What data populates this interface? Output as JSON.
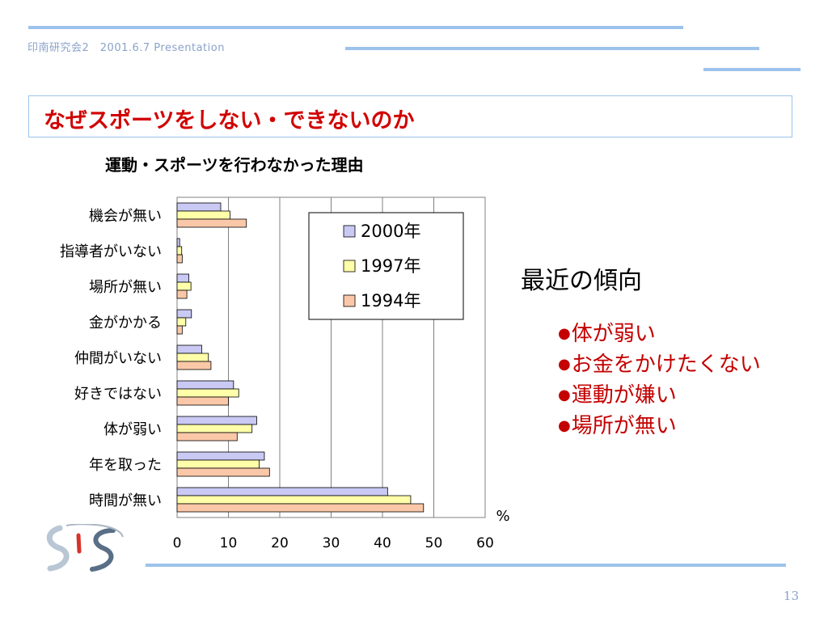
{
  "header": {
    "text": "印南研究会2　2001.6.7 Presentation"
  },
  "slide": {
    "title": "なぜスポーツをしない・できないのか",
    "page_number": "13",
    "logo_text": "SIS"
  },
  "side": {
    "heading": "最近の傾向",
    "bullet_glyph": "●",
    "items": [
      "体が弱い",
      "お金をかけたくない",
      "運動が嫌い",
      "場所が無い"
    ]
  },
  "colors": {
    "accent_rule": "#9cc3ec",
    "title_red": "#d10000",
    "series_2000": "#c9c9f4",
    "series_1997": "#ffffaa",
    "series_1994": "#fac8a8"
  },
  "chart_data": {
    "type": "bar",
    "orientation": "horizontal",
    "title": "運動・スポーツを行わなかった理由",
    "categories": [
      "機会が無い",
      "指導者がいない",
      "場所が無い",
      "金がかかる",
      "仲間がいない",
      "好きではない",
      "体が弱い",
      "年を取った",
      "時間が無い"
    ],
    "series": [
      {
        "name": "2000年",
        "color": "#c9c9f4",
        "values": [
          8.5,
          0.5,
          2.3,
          2.8,
          4.8,
          11,
          15.5,
          17,
          41
        ]
      },
      {
        "name": "1997年",
        "color": "#ffffaa",
        "values": [
          10.3,
          0.9,
          2.7,
          1.7,
          6.1,
          12,
          14.6,
          16,
          45.5
        ]
      },
      {
        "name": "1994年",
        "color": "#fac8a8",
        "values": [
          13.5,
          1,
          1.9,
          1,
          6.6,
          10,
          11.7,
          18,
          48
        ]
      }
    ],
    "x_unit_label": "%",
    "xlim": [
      0,
      60
    ],
    "x_ticks": [
      "0",
      "10",
      "20",
      "30",
      "40",
      "50",
      "60"
    ],
    "grid": true,
    "legend_position": "top-right"
  }
}
